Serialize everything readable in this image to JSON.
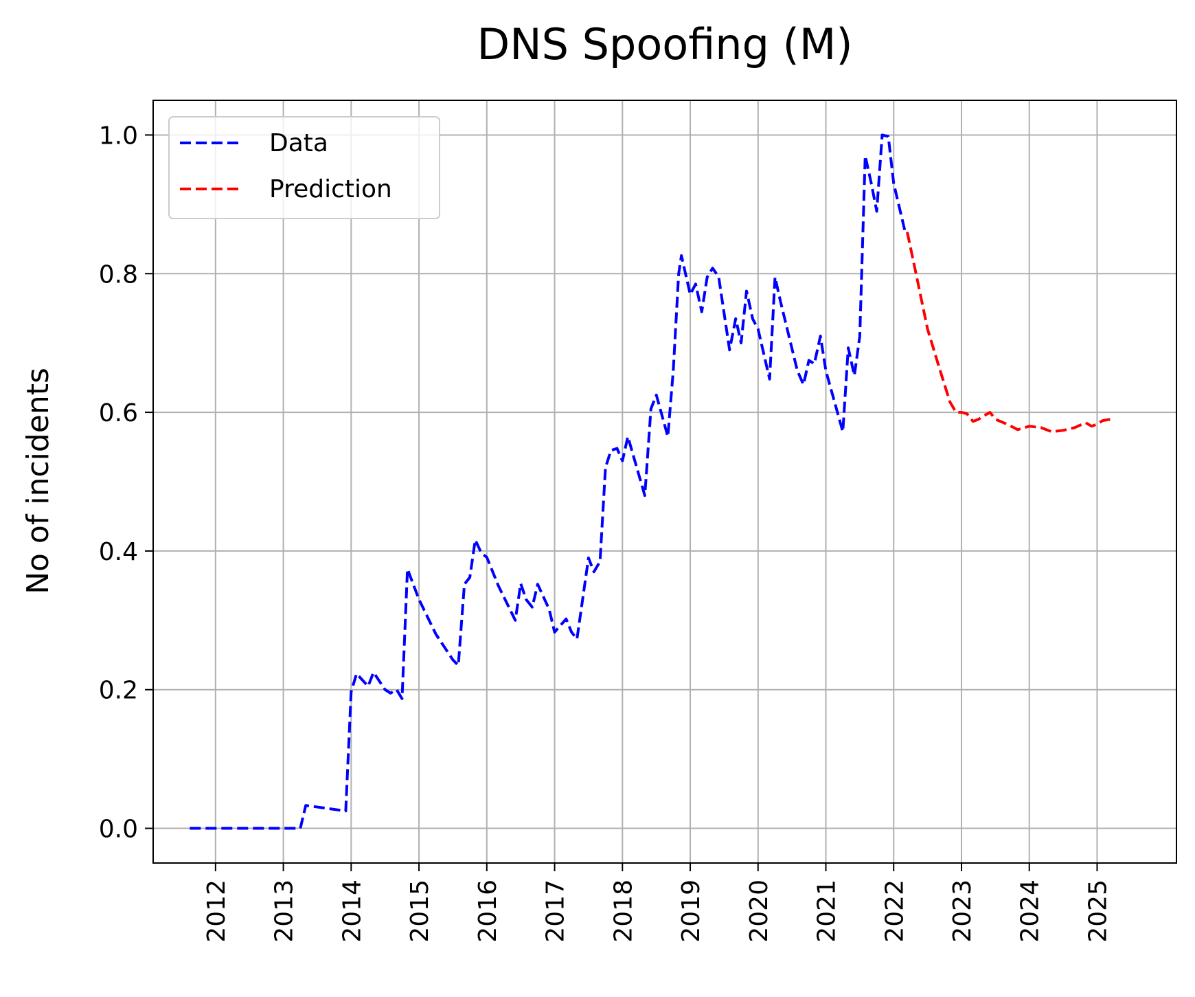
{
  "chart_data": {
    "type": "line",
    "title": "DNS Spoofing (M)",
    "xlabel": "",
    "ylabel": "No of incidents",
    "xlim": [
      2011.08,
      2026.17
    ],
    "ylim": [
      -0.05,
      1.05
    ],
    "x_ticks": [
      "2012",
      "2013",
      "2014",
      "2015",
      "2016",
      "2017",
      "2018",
      "2019",
      "2020",
      "2021",
      "2022",
      "2023",
      "2024",
      "2025"
    ],
    "y_ticks": [
      "0.0",
      "0.2",
      "0.4",
      "0.6",
      "0.8",
      "1.0"
    ],
    "grid": true,
    "legend_position": "upper-left",
    "series": [
      {
        "name": "Data",
        "color": "#0000ff",
        "style": "dashed",
        "points": [
          [
            2011.62,
            0.0
          ],
          [
            2013.25,
            0.0
          ],
          [
            2013.33,
            0.033
          ],
          [
            2013.92,
            0.025
          ],
          [
            2014.0,
            0.197
          ],
          [
            2014.08,
            0.223
          ],
          [
            2014.25,
            0.205
          ],
          [
            2014.33,
            0.225
          ],
          [
            2014.5,
            0.2
          ],
          [
            2014.58,
            0.195
          ],
          [
            2014.67,
            0.2
          ],
          [
            2014.75,
            0.187
          ],
          [
            2014.83,
            0.374
          ],
          [
            2015.0,
            0.33
          ],
          [
            2015.25,
            0.28
          ],
          [
            2015.5,
            0.243
          ],
          [
            2015.58,
            0.235
          ],
          [
            2015.67,
            0.352
          ],
          [
            2015.75,
            0.362
          ],
          [
            2015.83,
            0.416
          ],
          [
            2015.92,
            0.397
          ],
          [
            2016.0,
            0.391
          ],
          [
            2016.17,
            0.35
          ],
          [
            2016.42,
            0.3
          ],
          [
            2016.5,
            0.353
          ],
          [
            2016.58,
            0.33
          ],
          [
            2016.67,
            0.319
          ],
          [
            2016.75,
            0.352
          ],
          [
            2016.92,
            0.316
          ],
          [
            2017.0,
            0.283
          ],
          [
            2017.17,
            0.302
          ],
          [
            2017.25,
            0.283
          ],
          [
            2017.33,
            0.273
          ],
          [
            2017.5,
            0.39
          ],
          [
            2017.58,
            0.37
          ],
          [
            2017.67,
            0.385
          ],
          [
            2017.75,
            0.52
          ],
          [
            2017.83,
            0.545
          ],
          [
            2017.92,
            0.548
          ],
          [
            2018.0,
            0.53
          ],
          [
            2018.08,
            0.565
          ],
          [
            2018.33,
            0.48
          ],
          [
            2018.42,
            0.605
          ],
          [
            2018.5,
            0.625
          ],
          [
            2018.67,
            0.565
          ],
          [
            2018.75,
            0.66
          ],
          [
            2018.83,
            0.8
          ],
          [
            2018.87,
            0.826
          ],
          [
            2019.0,
            0.77
          ],
          [
            2019.08,
            0.785
          ],
          [
            2019.17,
            0.745
          ],
          [
            2019.25,
            0.795
          ],
          [
            2019.33,
            0.808
          ],
          [
            2019.42,
            0.795
          ],
          [
            2019.58,
            0.69
          ],
          [
            2019.67,
            0.735
          ],
          [
            2019.75,
            0.7
          ],
          [
            2019.83,
            0.775
          ],
          [
            2019.92,
            0.735
          ],
          [
            2020.0,
            0.72
          ],
          [
            2020.17,
            0.648
          ],
          [
            2020.25,
            0.795
          ],
          [
            2020.33,
            0.76
          ],
          [
            2020.58,
            0.66
          ],
          [
            2020.67,
            0.64
          ],
          [
            2020.75,
            0.675
          ],
          [
            2020.83,
            0.67
          ],
          [
            2020.92,
            0.71
          ],
          [
            2021.0,
            0.66
          ],
          [
            2021.25,
            0.572
          ],
          [
            2021.33,
            0.693
          ],
          [
            2021.42,
            0.653
          ],
          [
            2021.5,
            0.71
          ],
          [
            2021.58,
            0.97
          ],
          [
            2021.67,
            0.93
          ],
          [
            2021.75,
            0.89
          ],
          [
            2021.83,
            1.0
          ],
          [
            2021.92,
            0.998
          ],
          [
            2022.0,
            0.93
          ],
          [
            2022.17,
            0.86
          ]
        ]
      },
      {
        "name": "Prediction",
        "color": "#ff0000",
        "style": "dashed",
        "points": [
          [
            2022.2,
            0.86
          ],
          [
            2022.33,
            0.8
          ],
          [
            2022.5,
            0.72
          ],
          [
            2022.67,
            0.665
          ],
          [
            2022.83,
            0.615
          ],
          [
            2022.92,
            0.6
          ],
          [
            2023.0,
            0.6
          ],
          [
            2023.08,
            0.598
          ],
          [
            2023.17,
            0.587
          ],
          [
            2023.25,
            0.59
          ],
          [
            2023.33,
            0.595
          ],
          [
            2023.42,
            0.6
          ],
          [
            2023.5,
            0.59
          ],
          [
            2023.67,
            0.583
          ],
          [
            2023.83,
            0.575
          ],
          [
            2024.0,
            0.58
          ],
          [
            2024.17,
            0.578
          ],
          [
            2024.33,
            0.572
          ],
          [
            2024.5,
            0.574
          ],
          [
            2024.67,
            0.578
          ],
          [
            2024.83,
            0.585
          ],
          [
            2024.92,
            0.58
          ],
          [
            2025.0,
            0.583
          ],
          [
            2025.08,
            0.588
          ],
          [
            2025.2,
            0.59
          ]
        ]
      }
    ]
  }
}
